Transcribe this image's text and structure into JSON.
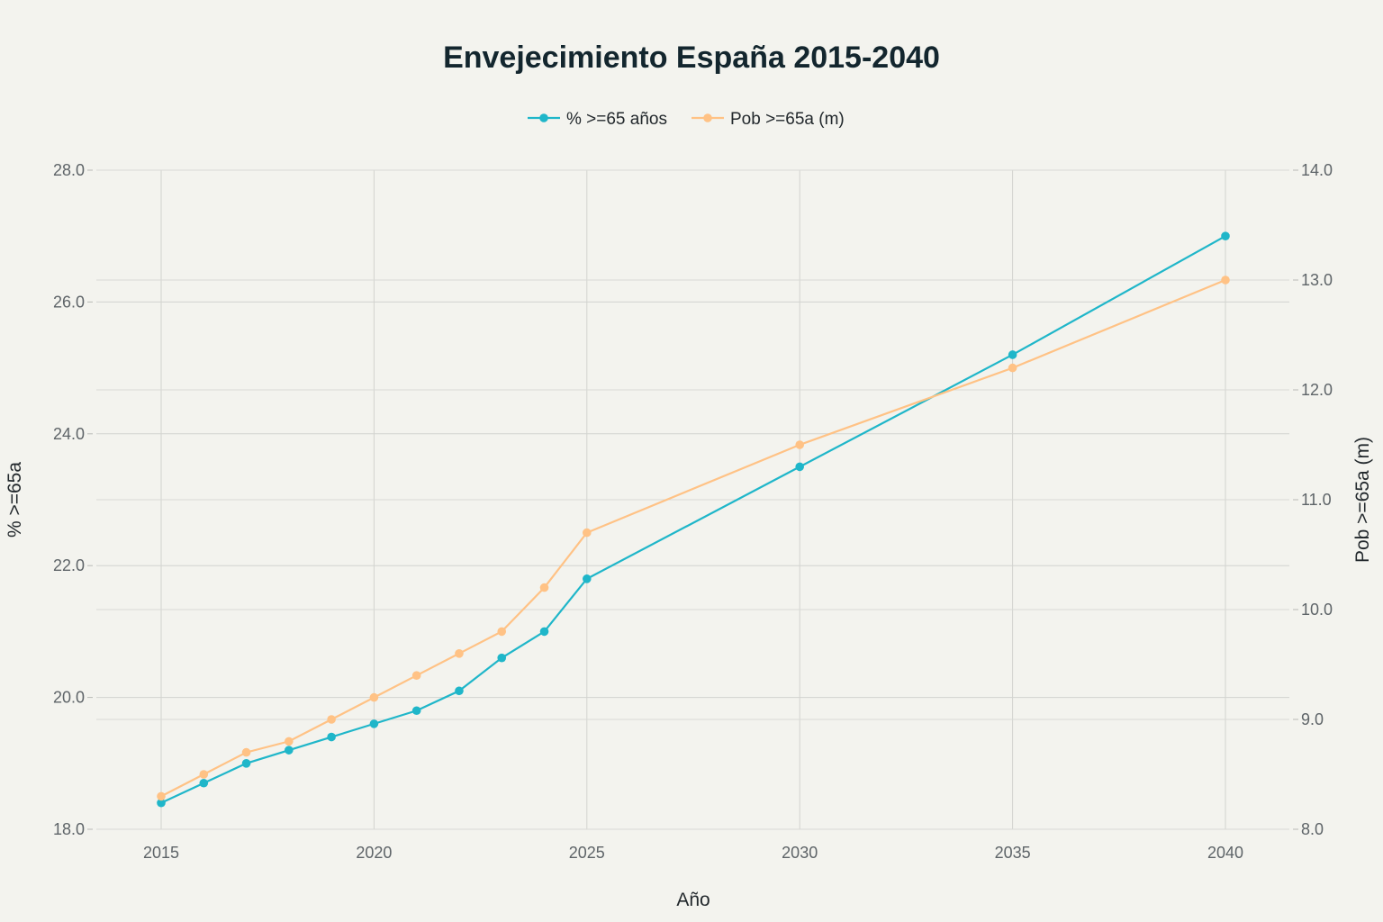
{
  "chart_data": {
    "type": "line",
    "title": "Envejecimiento España 2015-2040",
    "xlabel": "Año",
    "ylabel": "% >=65a",
    "y2label": "Pob >=65a (m)",
    "x": [
      2015,
      2016,
      2017,
      2018,
      2019,
      2020,
      2021,
      2022,
      2023,
      2024,
      2025,
      2030,
      2035,
      2040
    ],
    "xticks": [
      2015,
      2020,
      2025,
      2030,
      2035,
      2040
    ],
    "xlim": [
      2013.6,
      2041.5
    ],
    "ylim": [
      18,
      28
    ],
    "yticks": [
      "18.0",
      "20.0",
      "22.0",
      "24.0",
      "26.0",
      "28.0"
    ],
    "y2lim": [
      8,
      14
    ],
    "y2ticks": [
      "8.0",
      "9.0",
      "10.0",
      "11.0",
      "12.0",
      "13.0",
      "14.0"
    ],
    "grid": true,
    "legend_position": "top-center",
    "series": [
      {
        "name": "% >=65 años",
        "axis": "left",
        "color": "#1fb6c9",
        "values": [
          18.4,
          18.7,
          19.0,
          19.2,
          19.4,
          19.6,
          19.8,
          20.1,
          20.6,
          21.0,
          21.8,
          23.5,
          25.2,
          27.0
        ]
      },
      {
        "name": "Pob >=65a (m)",
        "axis": "right",
        "color": "#ffc285",
        "values": [
          8.3,
          8.5,
          8.7,
          8.8,
          9.0,
          9.2,
          9.4,
          9.6,
          9.8,
          10.2,
          10.7,
          11.5,
          12.2,
          13.0
        ]
      }
    ]
  }
}
